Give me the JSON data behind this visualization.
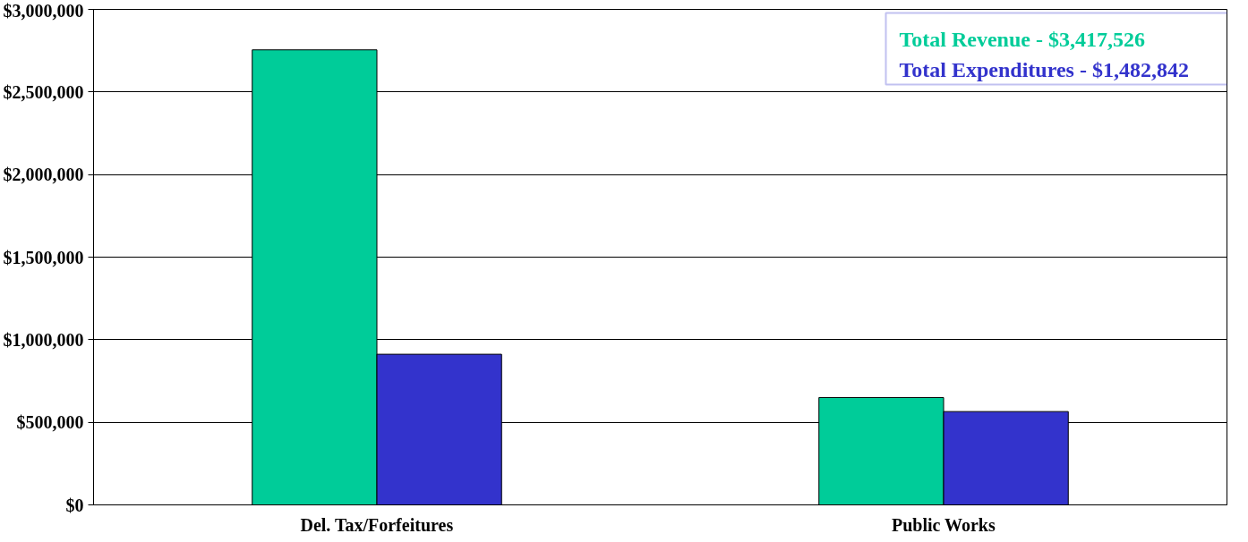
{
  "chart_data": {
    "type": "bar",
    "categories": [
      "Del. Tax/Forfeitures",
      "Public Works"
    ],
    "series": [
      {
        "name": "Total Revenue - $3,417,526",
        "color": "#00cc99",
        "values": [
          2755000,
          650000
        ]
      },
      {
        "name": "Total Expenditures - $1,482,842",
        "color": "#3333cc",
        "values": [
          912000,
          565000
        ]
      }
    ],
    "ylim": [
      0,
      3000000
    ],
    "yticks": [
      {
        "value": 0,
        "label": "$0"
      },
      {
        "value": 500000,
        "label": "$500,000"
      },
      {
        "value": 1000000,
        "label": "$1,000,000"
      },
      {
        "value": 1500000,
        "label": "$1,500,000"
      },
      {
        "value": 2000000,
        "label": "$2,000,000"
      },
      {
        "value": 2500000,
        "label": "$2,500,000"
      },
      {
        "value": 3000000,
        "label": "$3,000,000"
      }
    ],
    "grid": "y",
    "legend": "top right"
  }
}
